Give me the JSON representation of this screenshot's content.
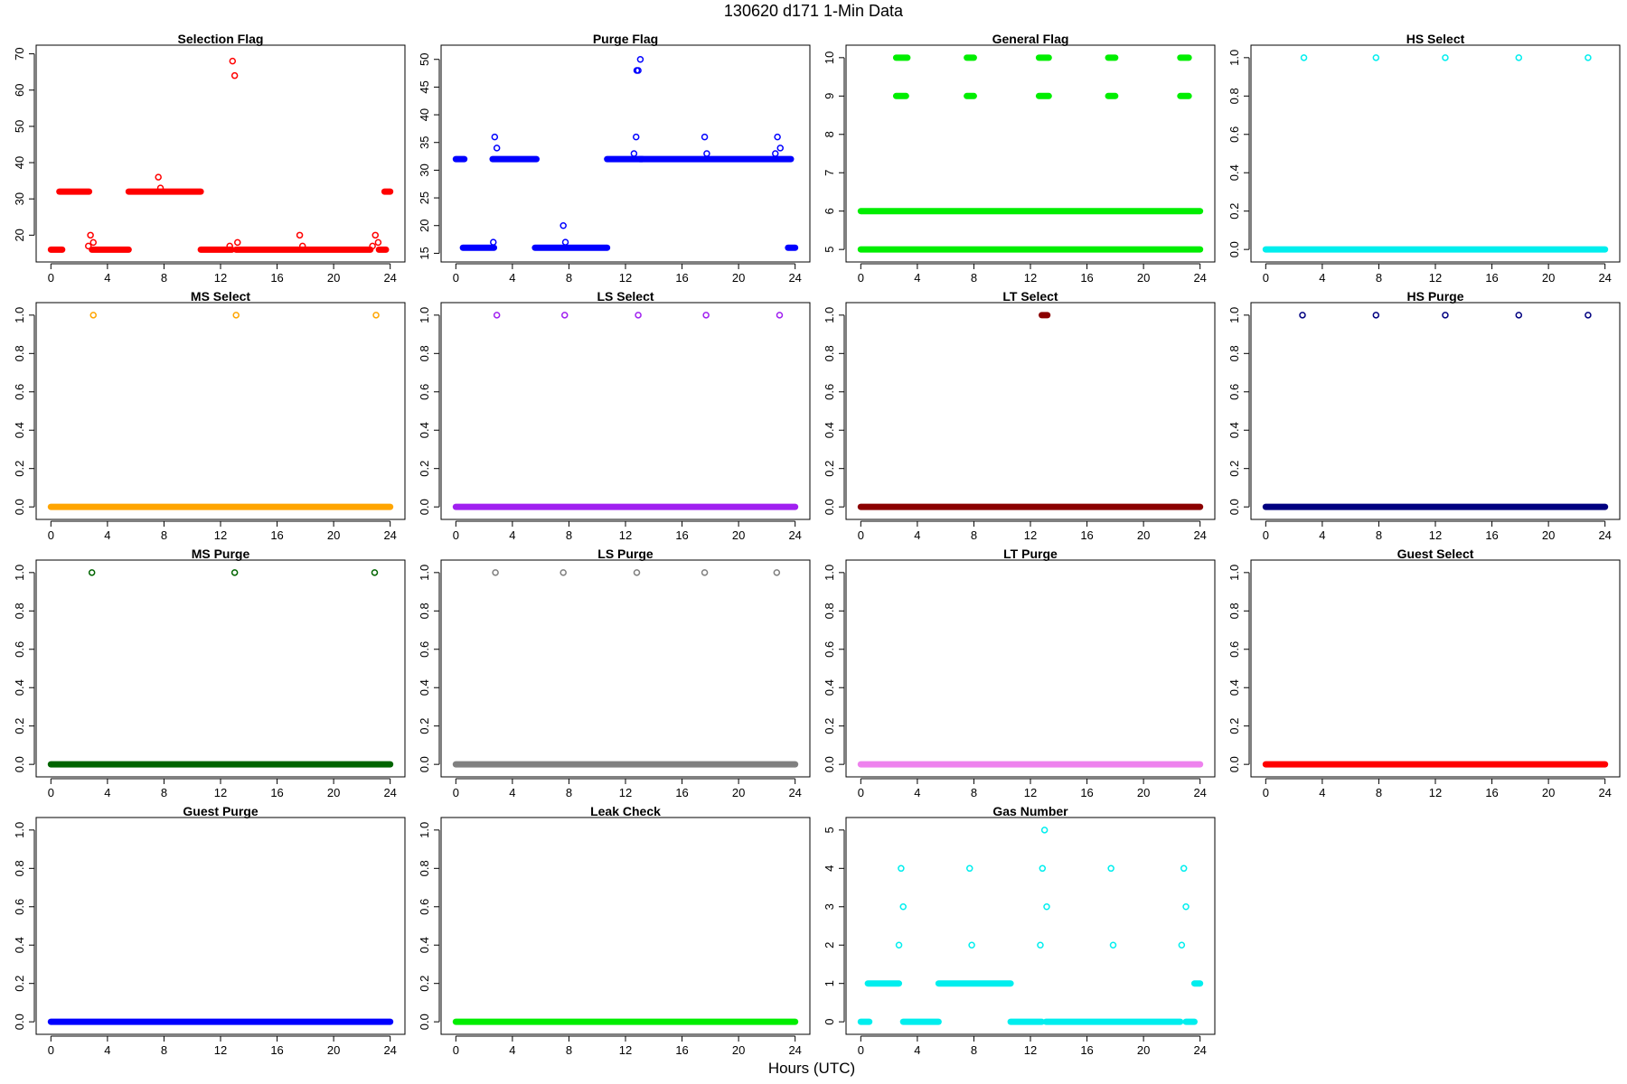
{
  "figure": {
    "title": "130620    d171    1-Min Data",
    "xlabel": "Hours (UTC)"
  },
  "chart_data": [
    {
      "type": "scatter",
      "title": "Selection Flag",
      "color": "#ff0000",
      "xlim": [
        0,
        24
      ],
      "ylim": [
        15,
        70
      ],
      "xticks": [
        0,
        4,
        8,
        12,
        16,
        20,
        24
      ],
      "yticks": [
        20,
        30,
        40,
        50,
        60,
        70
      ],
      "segments": [
        [
          0,
          0.8,
          16
        ],
        [
          0.6,
          2.7,
          32
        ],
        [
          2.9,
          5.5,
          16
        ],
        [
          5.5,
          10.6,
          32
        ],
        [
          10.6,
          12.8,
          16
        ],
        [
          13.1,
          22.6,
          16
        ],
        [
          23.2,
          23.7,
          16
        ],
        [
          23.6,
          24,
          32
        ]
      ],
      "points": [
        [
          2.65,
          17
        ],
        [
          2.8,
          20
        ],
        [
          3.0,
          18
        ],
        [
          7.6,
          36
        ],
        [
          7.75,
          33
        ],
        [
          12.65,
          17
        ],
        [
          12.85,
          68
        ],
        [
          13.0,
          64
        ],
        [
          13.2,
          18
        ],
        [
          17.6,
          20
        ],
        [
          17.8,
          17
        ],
        [
          22.75,
          17
        ],
        [
          22.95,
          20
        ],
        [
          23.15,
          18
        ]
      ]
    },
    {
      "type": "scatter",
      "title": "Purge Flag",
      "color": "#0000ff",
      "xlim": [
        0,
        24
      ],
      "ylim": [
        15,
        51
      ],
      "xticks": [
        0,
        4,
        8,
        12,
        16,
        20,
        24
      ],
      "yticks": [
        15,
        20,
        25,
        30,
        35,
        40,
        45,
        50
      ],
      "segments": [
        [
          0,
          0.6,
          32
        ],
        [
          0.5,
          2.7,
          16
        ],
        [
          2.6,
          5.7,
          32
        ],
        [
          5.6,
          10.7,
          16
        ],
        [
          10.7,
          13.2,
          32
        ],
        [
          13.0,
          23.7,
          32
        ],
        [
          23.5,
          24,
          16
        ]
      ],
      "points": [
        [
          2.65,
          17
        ],
        [
          2.75,
          36
        ],
        [
          2.9,
          34
        ],
        [
          7.6,
          20
        ],
        [
          7.75,
          17
        ],
        [
          12.6,
          33
        ],
        [
          12.75,
          36
        ],
        [
          12.8,
          48
        ],
        [
          12.9,
          48
        ],
        [
          13.05,
          50
        ],
        [
          17.6,
          36
        ],
        [
          17.75,
          33
        ],
        [
          22.6,
          33
        ],
        [
          22.75,
          36
        ],
        [
          22.95,
          34
        ]
      ]
    },
    {
      "type": "scatter",
      "title": "General Flag",
      "color": "#00ee00",
      "xlim": [
        0,
        24
      ],
      "ylim": [
        4.9,
        10.1
      ],
      "xticks": [
        0,
        4,
        8,
        12,
        16,
        20,
        24
      ],
      "yticks": [
        5,
        6,
        7,
        8,
        9,
        10
      ],
      "segments": [
        [
          0,
          24,
          5
        ],
        [
          0,
          24,
          6
        ],
        [
          2.5,
          3.2,
          9
        ],
        [
          2.5,
          3.3,
          10
        ],
        [
          7.5,
          8.0,
          9
        ],
        [
          7.5,
          8.0,
          10
        ],
        [
          12.6,
          13.3,
          9
        ],
        [
          12.6,
          13.3,
          10
        ],
        [
          17.5,
          18.0,
          9
        ],
        [
          17.5,
          18.0,
          10
        ],
        [
          22.6,
          23.2,
          9
        ],
        [
          22.6,
          23.2,
          10
        ]
      ],
      "points": []
    },
    {
      "type": "scatter",
      "title": "HS Select",
      "color": "#00eeee",
      "xlim": [
        0,
        24
      ],
      "ylim": [
        -0.02,
        1.02
      ],
      "xticks": [
        0,
        4,
        8,
        12,
        16,
        20,
        24
      ],
      "yticks": [
        0,
        0.2,
        0.4,
        0.6,
        0.8,
        1.0
      ],
      "segments": [
        [
          0,
          24,
          0
        ]
      ],
      "points": [
        [
          2.7,
          1
        ],
        [
          7.8,
          1
        ],
        [
          12.7,
          1
        ],
        [
          17.9,
          1
        ],
        [
          22.8,
          1
        ]
      ]
    },
    {
      "type": "scatter",
      "title": "MS Select",
      "color": "#ffa500",
      "xlim": [
        0,
        24
      ],
      "ylim": [
        -0.02,
        1.02
      ],
      "xticks": [
        0,
        4,
        8,
        12,
        16,
        20,
        24
      ],
      "yticks": [
        0,
        0.2,
        0.4,
        0.6,
        0.8,
        1.0
      ],
      "segments": [
        [
          0,
          24,
          0
        ]
      ],
      "points": [
        [
          3.0,
          1
        ],
        [
          13.1,
          1
        ],
        [
          23.0,
          1
        ]
      ]
    },
    {
      "type": "scatter",
      "title": "LS Select",
      "color": "#a020f0",
      "xlim": [
        0,
        24
      ],
      "ylim": [
        -0.02,
        1.02
      ],
      "xticks": [
        0,
        4,
        8,
        12,
        16,
        20,
        24
      ],
      "yticks": [
        0,
        0.2,
        0.4,
        0.6,
        0.8,
        1.0
      ],
      "segments": [
        [
          0,
          24,
          0
        ]
      ],
      "points": [
        [
          2.9,
          1
        ],
        [
          7.7,
          1
        ],
        [
          12.9,
          1
        ],
        [
          17.7,
          1
        ],
        [
          22.9,
          1
        ]
      ]
    },
    {
      "type": "scatter",
      "title": "LT Select",
      "color": "#8b0000",
      "xlim": [
        0,
        24
      ],
      "ylim": [
        -0.02,
        1.02
      ],
      "xticks": [
        0,
        4,
        8,
        12,
        16,
        20,
        24
      ],
      "yticks": [
        0,
        0.2,
        0.4,
        0.6,
        0.8,
        1.0
      ],
      "segments": [
        [
          0,
          24,
          0
        ],
        [
          12.8,
          13.2,
          1
        ]
      ],
      "points": []
    },
    {
      "type": "scatter",
      "title": "HS Purge",
      "color": "#000080",
      "xlim": [
        0,
        24
      ],
      "ylim": [
        -0.02,
        1.02
      ],
      "xticks": [
        0,
        4,
        8,
        12,
        16,
        20,
        24
      ],
      "yticks": [
        0,
        0.2,
        0.4,
        0.6,
        0.8,
        1.0
      ],
      "segments": [
        [
          0,
          24,
          0
        ]
      ],
      "points": [
        [
          2.6,
          1
        ],
        [
          7.8,
          1
        ],
        [
          12.7,
          1
        ],
        [
          17.9,
          1
        ],
        [
          22.8,
          1
        ]
      ]
    },
    {
      "type": "scatter",
      "title": "MS Purge",
      "color": "#006400",
      "xlim": [
        0,
        24
      ],
      "ylim": [
        -0.02,
        1.02
      ],
      "xticks": [
        0,
        4,
        8,
        12,
        16,
        20,
        24
      ],
      "yticks": [
        0,
        0.2,
        0.4,
        0.6,
        0.8,
        1.0
      ],
      "segments": [
        [
          0,
          24,
          0
        ]
      ],
      "points": [
        [
          2.9,
          1
        ],
        [
          13.0,
          1
        ],
        [
          22.9,
          1
        ]
      ]
    },
    {
      "type": "scatter",
      "title": "LS Purge",
      "color": "#808080",
      "xlim": [
        0,
        24
      ],
      "ylim": [
        -0.02,
        1.02
      ],
      "xticks": [
        0,
        4,
        8,
        12,
        16,
        20,
        24
      ],
      "yticks": [
        0,
        0.2,
        0.4,
        0.6,
        0.8,
        1.0
      ],
      "segments": [
        [
          0,
          24,
          0
        ]
      ],
      "points": [
        [
          2.8,
          1
        ],
        [
          7.6,
          1
        ],
        [
          12.8,
          1
        ],
        [
          17.6,
          1
        ],
        [
          22.7,
          1
        ]
      ]
    },
    {
      "type": "scatter",
      "title": "LT Purge",
      "color": "#ee82ee",
      "xlim": [
        0,
        24
      ],
      "ylim": [
        -0.02,
        1.02
      ],
      "xticks": [
        0,
        4,
        8,
        12,
        16,
        20,
        24
      ],
      "yticks": [
        0,
        0.2,
        0.4,
        0.6,
        0.8,
        1.0
      ],
      "segments": [
        [
          0,
          24,
          0
        ]
      ],
      "points": []
    },
    {
      "type": "scatter",
      "title": "Guest Select",
      "color": "#ff0000",
      "xlim": [
        0,
        24
      ],
      "ylim": [
        -0.02,
        1.02
      ],
      "xticks": [
        0,
        4,
        8,
        12,
        16,
        20,
        24
      ],
      "yticks": [
        0,
        0.2,
        0.4,
        0.6,
        0.8,
        1.0
      ],
      "segments": [
        [
          0,
          24,
          0
        ]
      ],
      "points": []
    },
    {
      "type": "scatter",
      "title": "Guest Purge",
      "color": "#0000ff",
      "xlim": [
        0,
        24
      ],
      "ylim": [
        -0.02,
        1.02
      ],
      "xticks": [
        0,
        4,
        8,
        12,
        16,
        20,
        24
      ],
      "yticks": [
        0,
        0.2,
        0.4,
        0.6,
        0.8,
        1.0
      ],
      "segments": [
        [
          0,
          24,
          0
        ]
      ],
      "points": []
    },
    {
      "type": "scatter",
      "title": "Leak Check",
      "color": "#00ee00",
      "xlim": [
        0,
        24
      ],
      "ylim": [
        -0.02,
        1.02
      ],
      "xticks": [
        0,
        4,
        8,
        12,
        16,
        20,
        24
      ],
      "yticks": [
        0,
        0.2,
        0.4,
        0.6,
        0.8,
        1.0
      ],
      "segments": [
        [
          0,
          24,
          0
        ]
      ],
      "points": []
    },
    {
      "type": "scatter",
      "title": "Gas Number",
      "color": "#00eeee",
      "xlim": [
        0,
        24
      ],
      "ylim": [
        -0.1,
        5.1
      ],
      "xticks": [
        0,
        4,
        8,
        12,
        16,
        20,
        24
      ],
      "yticks": [
        0,
        1,
        2,
        3,
        4,
        5
      ],
      "segments": [
        [
          0,
          0.6,
          0
        ],
        [
          0.5,
          2.7,
          1
        ],
        [
          3.0,
          5.5,
          0
        ],
        [
          5.5,
          10.6,
          1
        ],
        [
          10.6,
          12.8,
          0
        ],
        [
          13.1,
          22.6,
          0
        ],
        [
          23.0,
          23.6,
          0
        ],
        [
          23.6,
          24,
          1
        ]
      ],
      "points": [
        [
          2.7,
          2
        ],
        [
          2.85,
          4
        ],
        [
          3.0,
          3
        ],
        [
          7.7,
          4
        ],
        [
          7.85,
          2
        ],
        [
          12.7,
          2
        ],
        [
          12.85,
          4
        ],
        [
          13.0,
          5
        ],
        [
          13.15,
          3
        ],
        [
          17.7,
          4
        ],
        [
          17.85,
          2
        ],
        [
          22.7,
          2
        ],
        [
          22.85,
          4
        ],
        [
          23.0,
          3
        ]
      ]
    }
  ]
}
